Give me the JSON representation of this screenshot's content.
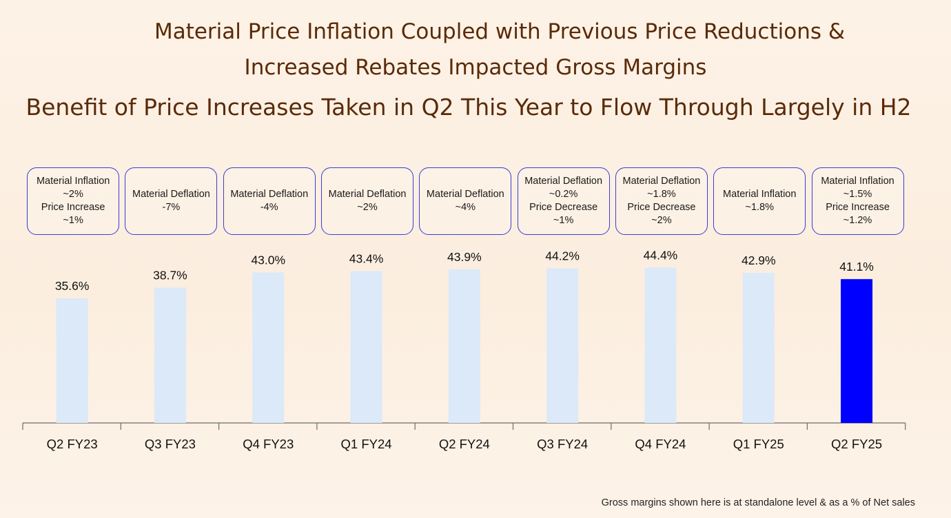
{
  "titles": {
    "line1": "Material Price Inflation Coupled with Previous Price Reductions &",
    "line2": "Increased Rebates Impacted Gross Margins",
    "line3": "Benefit of Price Increases Taken in Q2 This Year to Flow Through Largely in H2"
  },
  "footnote": "Gross margins shown here is at standalone level & as a % of Net sales",
  "colors": {
    "bar": "#dbe9f8",
    "highlight": "#0000ff",
    "box_border": "#3b3bd6",
    "title": "#5a2a08"
  },
  "chart_data": {
    "type": "bar",
    "categories": [
      "Q2 FY23",
      "Q3 FY23",
      "Q4 FY23",
      "Q1 FY24",
      "Q2 FY24",
      "Q3 FY24",
      "Q4 FY24",
      "Q1 FY25",
      "Q2 FY25"
    ],
    "values": [
      35.6,
      38.7,
      43.0,
      43.4,
      43.9,
      44.2,
      44.4,
      42.9,
      41.1
    ],
    "data_labels": [
      "35.6%",
      "38.7%",
      "43.0%",
      "43.4%",
      "43.9%",
      "44.2%",
      "44.4%",
      "42.9%",
      "41.1%"
    ],
    "highlight_index": 8,
    "ylim": [
      0,
      70
    ],
    "grid": false,
    "annotations": [
      [
        "Material Inflation",
        "~2%",
        "Price Increase",
        "~1%"
      ],
      [
        "Material Deflation",
        "-7%"
      ],
      [
        "Material Deflation",
        "-4%"
      ],
      [
        "Material Deflation",
        "~2%"
      ],
      [
        "Material Deflation",
        "~4%"
      ],
      [
        "Material Deflation",
        "~0.2%",
        "Price Decrease",
        "~1%"
      ],
      [
        "Material Deflation",
        "~1.8%",
        "Price Decrease",
        "~2%"
      ],
      [
        "Material Inflation",
        "~1.8%"
      ],
      [
        "Material Inflation",
        "~1.5%",
        "Price Increase",
        "~1.2%"
      ]
    ]
  }
}
